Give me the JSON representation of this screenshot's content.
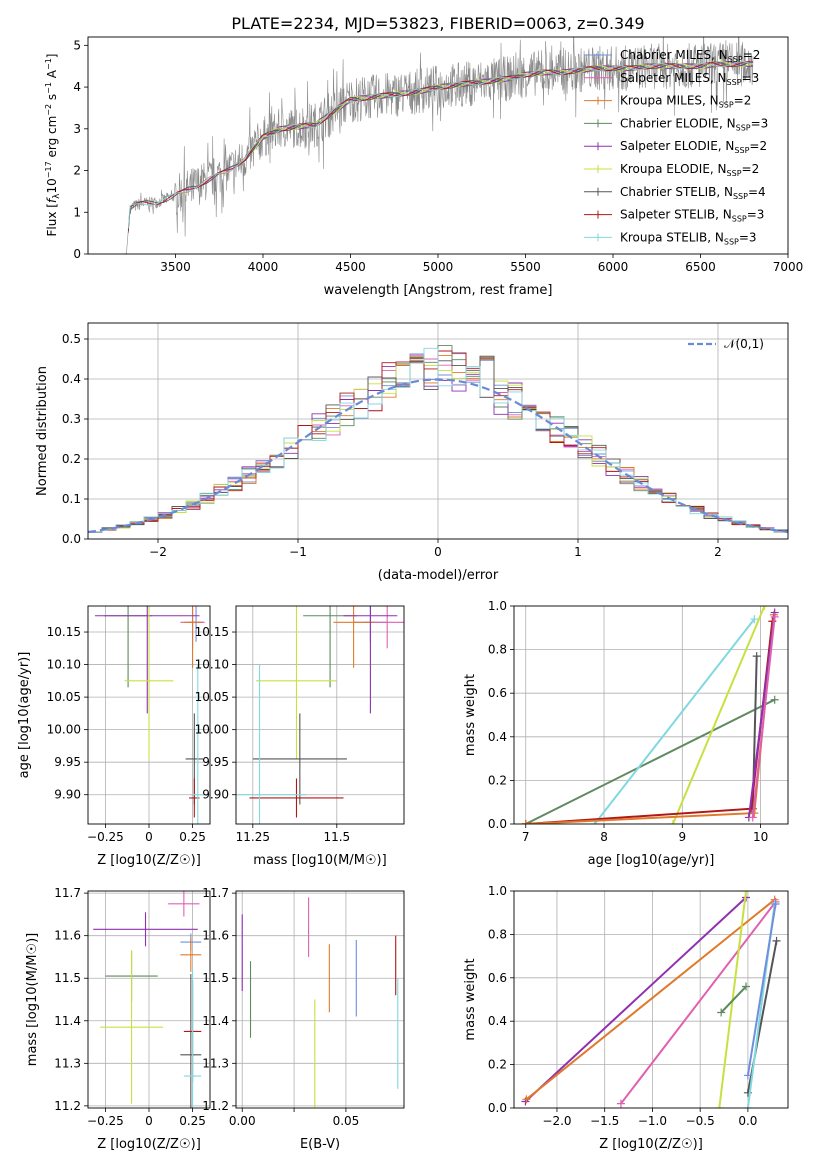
{
  "figure_title": "PLATE=2234, MJD=53823, FIBERID=0063, z=0.349",
  "colors": {
    "cm": "#6f8fdc",
    "sm": "#e060b0",
    "km": "#e07a2a",
    "ce": "#5f8a5f",
    "se": "#9030b0",
    "ke": "#c8e040",
    "cs": "#555555",
    "ss": "#b01818",
    "ks": "#80d8e0"
  },
  "legend_spectrum": [
    {
      "key": "cm",
      "label": "Chabrier MILES, N",
      "sub": "SSP",
      "tail": "=2"
    },
    {
      "key": "sm",
      "label": "Salpeter MILES, N",
      "sub": "SSP",
      "tail": "=3"
    },
    {
      "key": "km",
      "label": "Kroupa MILES, N",
      "sub": "SSP",
      "tail": "=2"
    },
    {
      "key": "ce",
      "label": "Chabrier ELODIE, N",
      "sub": "SSP",
      "tail": "=3"
    },
    {
      "key": "se",
      "label": "Salpeter ELODIE, N",
      "sub": "SSP",
      "tail": "=2"
    },
    {
      "key": "ke",
      "label": "Kroupa ELODIE, N",
      "sub": "SSP",
      "tail": "=2"
    },
    {
      "key": "cs",
      "label": "Chabrier STELIB, N",
      "sub": "SSP",
      "tail": "=4"
    },
    {
      "key": "ss",
      "label": "Salpeter STELIB, N",
      "sub": "SSP",
      "tail": "=3"
    },
    {
      "key": "ks",
      "label": "Kroupa STELIB, N",
      "sub": "SSP",
      "tail": "=3"
    }
  ],
  "chart_data": [
    {
      "id": "spectrum",
      "type": "line",
      "xlabel": "wavelength [Angstrom, rest frame]",
      "ylabel": "Flux [f_λ 10^-17 erg cm^-2 s^-1 A^-1]",
      "xlim": [
        3000,
        7000
      ],
      "ylim": [
        0,
        5.2
      ],
      "xticks": [
        3500,
        4000,
        4500,
        5000,
        5500,
        6000,
        6500,
        7000
      ],
      "yticks": [
        0,
        1,
        2,
        3,
        4,
        5
      ],
      "continuum": [
        [
          3210,
          0
        ],
        [
          3220,
          0.02
        ],
        [
          3240,
          1.1
        ],
        [
          3300,
          1.2
        ],
        [
          3400,
          1.25
        ],
        [
          3500,
          1.4
        ],
        [
          3600,
          1.6
        ],
        [
          3700,
          1.8
        ],
        [
          3800,
          2.0
        ],
        [
          3900,
          2.3
        ],
        [
          4000,
          2.8
        ],
        [
          4100,
          3.0
        ],
        [
          4200,
          3.05
        ],
        [
          4300,
          3.1
        ],
        [
          4400,
          3.4
        ],
        [
          4500,
          3.7
        ],
        [
          4600,
          3.75
        ],
        [
          4700,
          3.8
        ],
        [
          4800,
          3.85
        ],
        [
          4900,
          3.9
        ],
        [
          5000,
          4.0
        ],
        [
          5100,
          4.05
        ],
        [
          5200,
          4.1
        ],
        [
          5300,
          4.15
        ],
        [
          5400,
          4.2
        ],
        [
          5500,
          4.3
        ],
        [
          5600,
          4.35
        ],
        [
          5700,
          4.35
        ],
        [
          5800,
          4.4
        ],
        [
          5900,
          4.45
        ],
        [
          6000,
          4.45
        ],
        [
          6100,
          4.45
        ],
        [
          6200,
          4.5
        ],
        [
          6300,
          4.5
        ],
        [
          6400,
          4.5
        ],
        [
          6500,
          4.5
        ],
        [
          6600,
          4.55
        ],
        [
          6700,
          4.55
        ],
        [
          6800,
          4.55
        ]
      ],
      "grid": false,
      "legend": "upper-right"
    },
    {
      "id": "residuals",
      "type": "line",
      "xlabel": "(data-model)/error",
      "ylabel": "Normed distribution",
      "xlim": [
        -2.5,
        2.5
      ],
      "ylim": [
        0,
        0.54
      ],
      "xticks": [
        -2,
        -1,
        0,
        1,
        2
      ],
      "yticks": [
        0,
        0.1,
        0.2,
        0.3,
        0.4,
        0.5
      ],
      "series": [
        {
          "name": "𝒩(0,1)",
          "mu": 0,
          "sigma": 1
        }
      ],
      "grid": true,
      "legend": "upper-right"
    },
    {
      "id": "age_vs_Z",
      "type": "scatter",
      "xlabel": "Z [log10(Z/Z☉)]",
      "ylabel": "age [log10(age/yr)]",
      "xlim": [
        -0.35,
        0.35
      ],
      "ylim": [
        9.855,
        10.19
      ],
      "xticks": [
        -0.25,
        0,
        0.25
      ],
      "yticks": [
        9.9,
        9.95,
        10.0,
        10.05,
        10.1,
        10.15
      ],
      "points": [
        {
          "key": "cm",
          "x": 0.27,
          "y": 10.165,
          "dx": 0.04,
          "dy": 0.03
        },
        {
          "key": "sm",
          "x": 0.25,
          "y": 10.165,
          "dx": 0.07,
          "dy": 0.04
        },
        {
          "key": "km",
          "x": 0.25,
          "y": 10.165,
          "dx": 0.05,
          "dy": 0.07
        },
        {
          "key": "ce",
          "x": -0.12,
          "y": 10.175,
          "dx": 0.14,
          "dy": 0.11
        },
        {
          "key": "se",
          "x": -0.01,
          "y": 10.175,
          "dx": 0.3,
          "dy": 0.15
        },
        {
          "key": "ke",
          "x": 0.0,
          "y": 10.075,
          "dx": 0.14,
          "dy": 0.12
        },
        {
          "key": "cs",
          "x": 0.26,
          "y": 9.955,
          "dx": 0.05,
          "dy": 0.07
        },
        {
          "key": "ss",
          "x": 0.26,
          "y": 9.895,
          "dx": 0.03,
          "dy": 0.03
        },
        {
          "key": "ks",
          "x": 0.28,
          "y": 9.9,
          "dx": 0.04,
          "dy": 0.2
        }
      ]
    },
    {
      "id": "age_vs_mass",
      "type": "scatter",
      "xlabel": "mass [log10(M/M☉)]",
      "ylabel": "",
      "xlim": [
        11.2,
        11.7
      ],
      "ylim": [
        9.855,
        10.19
      ],
      "xticks": [
        11.25,
        11.5
      ],
      "yticks": [
        9.9,
        9.95,
        10.0,
        10.05,
        10.1,
        10.15
      ],
      "points": [
        {
          "key": "cm",
          "x": 11.6,
          "y": 10.165,
          "dx": 0.05,
          "dy": 0.03
        },
        {
          "key": "sm",
          "x": 11.65,
          "y": 10.165,
          "dx": 0.07,
          "dy": 0.04
        },
        {
          "key": "km",
          "x": 11.55,
          "y": 10.165,
          "dx": 0.06,
          "dy": 0.07
        },
        {
          "key": "ce",
          "x": 11.48,
          "y": 10.175,
          "dx": 0.08,
          "dy": 0.11
        },
        {
          "key": "se",
          "x": 11.6,
          "y": 10.175,
          "dx": 0.08,
          "dy": 0.15
        },
        {
          "key": "ke",
          "x": 11.38,
          "y": 10.075,
          "dx": 0.12,
          "dy": 0.12
        },
        {
          "key": "cs",
          "x": 11.39,
          "y": 9.955,
          "dx": 0.14,
          "dy": 0.07
        },
        {
          "key": "ss",
          "x": 11.38,
          "y": 9.895,
          "dx": 0.14,
          "dy": 0.03
        },
        {
          "key": "ks",
          "x": 11.27,
          "y": 9.9,
          "dx": 0.14,
          "dy": 0.2
        }
      ]
    },
    {
      "id": "massweight_vs_age",
      "type": "line",
      "xlabel": "age [log10(age/yr)]",
      "ylabel": "mass weight",
      "xlim": [
        6.85,
        10.35
      ],
      "ylim": [
        0,
        1
      ],
      "xticks": [
        7,
        8,
        9,
        10
      ],
      "yticks": [
        0,
        0.2,
        0.4,
        0.6,
        0.8,
        1.0
      ],
      "series": [
        {
          "key": "ce",
          "points": [
            [
              7.0,
              0.0
            ],
            [
              10.18,
              0.57
            ]
          ]
        },
        {
          "key": "ks",
          "points": [
            [
              7.88,
              0.0
            ],
            [
              9.92,
              0.94
            ]
          ]
        },
        {
          "key": "ke",
          "points": [
            [
              8.88,
              0.0
            ],
            [
              10.05,
              1.0
            ]
          ]
        },
        {
          "key": "cs",
          "points": [
            [
              9.9,
              0.07
            ],
            [
              9.95,
              0.77
            ]
          ]
        },
        {
          "key": "ss",
          "points": [
            [
              7.0,
              0.0
            ],
            [
              9.88,
              0.07
            ],
            [
              10.15,
              0.93
            ]
          ]
        },
        {
          "key": "km",
          "points": [
            [
              7.0,
              0.0
            ],
            [
              9.92,
              0.05
            ],
            [
              10.17,
              0.96
            ]
          ]
        },
        {
          "key": "se",
          "points": [
            [
              9.85,
              0.03
            ],
            [
              10.18,
              0.97
            ]
          ]
        },
        {
          "key": "sm",
          "points": [
            [
              9.9,
              0.03
            ],
            [
              10.18,
              0.95
            ]
          ]
        }
      ]
    },
    {
      "id": "mass_vs_Z",
      "type": "scatter",
      "xlabel": "Z [log10(Z/Z☉)]",
      "ylabel": "mass [log10(M/M☉)]",
      "xlim": [
        -0.35,
        0.35
      ],
      "ylim": [
        11.195,
        11.705
      ],
      "xticks": [
        -0.25,
        0,
        0.25
      ],
      "yticks": [
        11.2,
        11.3,
        11.4,
        11.5,
        11.6,
        11.7
      ],
      "points": [
        {
          "key": "sm",
          "x": 0.2,
          "y": 11.675,
          "dx": 0.09,
          "dy": 0.03
        },
        {
          "key": "se",
          "x": -0.02,
          "y": 11.615,
          "dx": 0.3,
          "dy": 0.04
        },
        {
          "key": "cm",
          "x": 0.24,
          "y": 11.585,
          "dx": 0.06,
          "dy": 0.02
        },
        {
          "key": "km",
          "x": 0.24,
          "y": 11.555,
          "dx": 0.06,
          "dy": 0.04
        },
        {
          "key": "ce",
          "x": -0.1,
          "y": 11.505,
          "dx": 0.15,
          "dy": 0.06
        },
        {
          "key": "ke",
          "x": -0.1,
          "y": 11.385,
          "dx": 0.18,
          "dy": 0.18
        },
        {
          "key": "ss",
          "x": 0.25,
          "y": 11.375,
          "dx": 0.05,
          "dy": 0.12
        },
        {
          "key": "cs",
          "x": 0.24,
          "y": 11.32,
          "dx": 0.06,
          "dy": 0.19
        },
        {
          "key": "ks",
          "x": 0.25,
          "y": 11.27,
          "dx": 0.05,
          "dy": 0.25
        }
      ]
    },
    {
      "id": "mass_vs_ebv",
      "type": "scatter",
      "xlabel": "E(B-V)",
      "ylabel": "",
      "xlim": [
        -0.003,
        0.078
      ],
      "ylim": [
        11.195,
        11.705
      ],
      "xticks": [
        0,
        0.025,
        0.05
      ],
      "xticklabels": [
        "0.00",
        "",
        "0.05"
      ],
      "yticks": [
        11.2,
        11.3,
        11.4,
        11.5,
        11.6,
        11.7
      ],
      "points": [
        {
          "key": "se",
          "x": 0.0,
          "y": 11.56,
          "dy": 0.09
        },
        {
          "key": "ce",
          "x": 0.004,
          "y": 11.45,
          "dy": 0.09
        },
        {
          "key": "sm",
          "x": 0.032,
          "y": 11.62,
          "dy": 0.07
        },
        {
          "key": "ke",
          "x": 0.035,
          "y": 11.32,
          "dy": 0.13
        },
        {
          "key": "km",
          "x": 0.042,
          "y": 11.5,
          "dy": 0.08
        },
        {
          "key": "cm",
          "x": 0.055,
          "y": 11.5,
          "dy": 0.09
        },
        {
          "key": "ss",
          "x": 0.074,
          "y": 11.53,
          "dy": 0.07
        },
        {
          "key": "ks",
          "x": 0.075,
          "y": 11.37,
          "dy": 0.13
        }
      ]
    },
    {
      "id": "massweight_vs_Z",
      "type": "line",
      "xlabel": "Z [log10(Z/Z☉)]",
      "ylabel": "mass weight",
      "xlim": [
        -2.45,
        0.42
      ],
      "ylim": [
        0,
        1
      ],
      "xticks": [
        -2.0,
        -1.5,
        -1.0,
        -0.5,
        0.0
      ],
      "xticklabels": [
        "−2.0",
        "−1.5",
        "−1.0",
        "−0.5",
        "0.0"
      ],
      "yticks": [
        0,
        0.2,
        0.4,
        0.6,
        0.8,
        1.0
      ],
      "series": [
        {
          "key": "se",
          "points": [
            [
              -2.33,
              0.03
            ],
            [
              -0.02,
              0.97
            ]
          ]
        },
        {
          "key": "km",
          "points": [
            [
              -2.32,
              0.04
            ],
            [
              0.28,
              0.96
            ]
          ]
        },
        {
          "key": "sm",
          "points": [
            [
              -1.33,
              0.02
            ],
            [
              0.29,
              0.95
            ]
          ]
        },
        {
          "key": "ke",
          "points": [
            [
              -0.3,
              0.0
            ],
            [
              -0.02,
              1.0
            ]
          ]
        },
        {
          "key": "ce",
          "points": [
            [
              -0.28,
              0.44
            ],
            [
              -0.02,
              0.56
            ]
          ]
        },
        {
          "key": "cs",
          "points": [
            [
              0.0,
              0.07
            ],
            [
              0.3,
              0.77
            ]
          ]
        },
        {
          "key": "ks",
          "points": [
            [
              0.0,
              0.0
            ],
            [
              0.28,
              0.94
            ]
          ]
        },
        {
          "key": "cm",
          "points": [
            [
              0.0,
              0.15
            ],
            [
              0.29,
              0.94
            ]
          ]
        }
      ]
    }
  ]
}
